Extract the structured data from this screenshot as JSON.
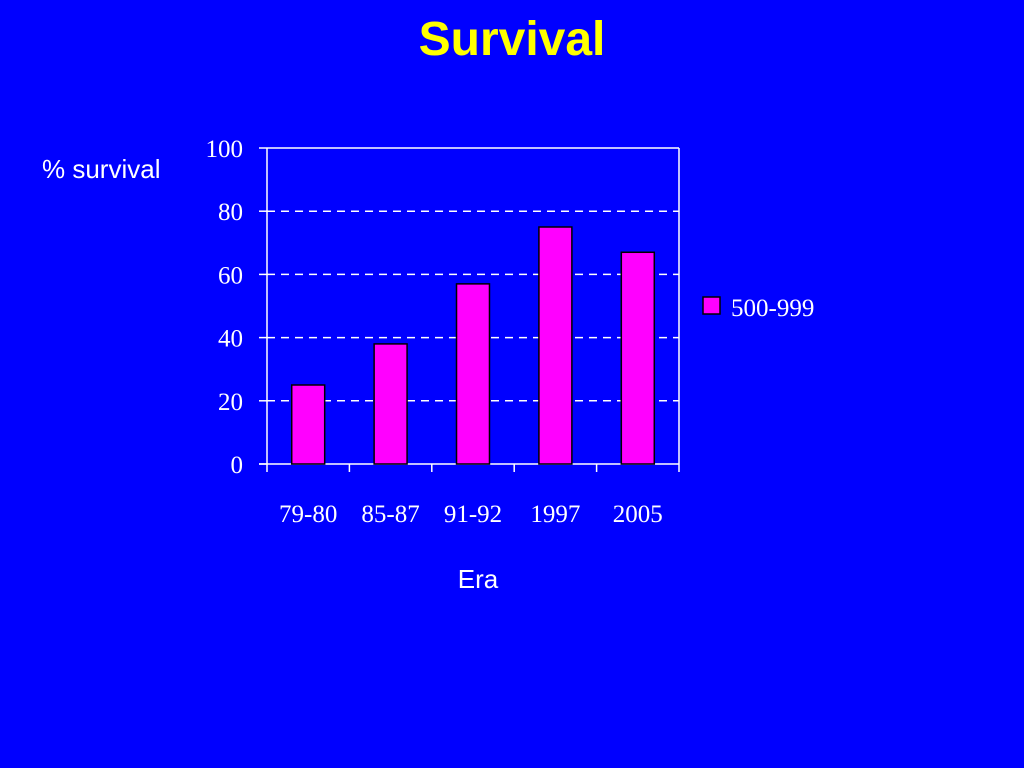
{
  "slide": {
    "title": "Survival"
  },
  "colors": {
    "background": "#0000ff",
    "title": "#ffff00",
    "text": "#ffffff",
    "bar_fill": "#ff00ff",
    "bar_stroke": "#000000",
    "grid": "#ffffff"
  },
  "chart_data": {
    "type": "bar",
    "title": "",
    "xlabel": "Era",
    "ylabel": "% survival",
    "categories": [
      "79-80",
      "85-87",
      "91-92",
      "1997",
      "2005"
    ],
    "series": [
      {
        "name": "500-999",
        "values": [
          25,
          38,
          57,
          75,
          67
        ]
      }
    ],
    "ylim": [
      0,
      100
    ],
    "yticks": [
      0,
      20,
      40,
      60,
      80,
      100
    ],
    "grid": "dashed horizontal",
    "legend": "right"
  }
}
